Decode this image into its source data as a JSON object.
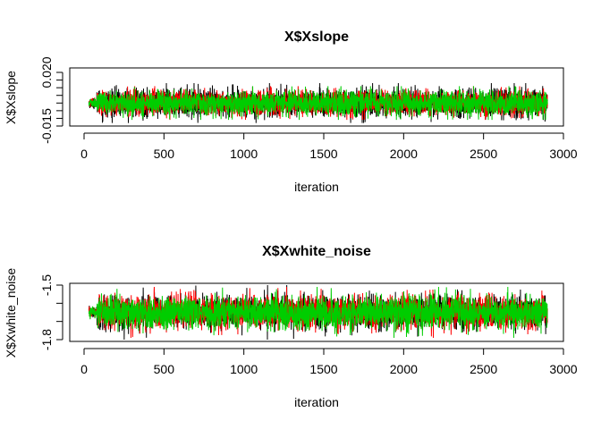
{
  "chart_data": [
    {
      "type": "line",
      "title": "X$Xslope",
      "xlabel": "iteration",
      "ylabel": "X$Xslope",
      "xlim": [
        0,
        3000
      ],
      "ylim": [
        -0.015,
        0.02
      ],
      "x_ticks": [
        "0",
        "500",
        "1000",
        "1500",
        "2000",
        "2500",
        "3000"
      ],
      "y_ticks": [
        "-0.015",
        "0.020"
      ],
      "y_tick_values": [
        -0.015,
        0.02
      ],
      "y_minor_ticks": [
        -0.01,
        -0.005,
        0.0,
        0.005,
        0.01,
        0.015
      ],
      "x_range": [
        30,
        2900
      ],
      "series": [
        {
          "color": "#000000",
          "center": 0.0,
          "spread": 0.0045,
          "max_dev": 0.013
        },
        {
          "color": "#FF0000",
          "center": 0.0,
          "spread": 0.004,
          "max_dev": 0.011
        },
        {
          "color": "#00CD00",
          "center": 0.0,
          "spread": 0.004,
          "max_dev": 0.011
        }
      ]
    },
    {
      "type": "line",
      "title": "X$Xwhite_noise",
      "xlabel": "iteration",
      "ylabel": "X$Xwhite_noise",
      "xlim": [
        0,
        3000
      ],
      "ylim": [
        -1.8,
        -1.5
      ],
      "x_ticks": [
        "0",
        "500",
        "1000",
        "1500",
        "2000",
        "2500",
        "3000"
      ],
      "y_ticks": [
        "-1.5",
        "-1.8"
      ],
      "y_tick_values": [
        -1.5,
        -1.8
      ],
      "y_minor_ticks": [
        -1.7,
        -1.6
      ],
      "x_range": [
        30,
        2900
      ],
      "series": [
        {
          "color": "#000000",
          "center": -1.65,
          "spread": 0.045,
          "max_dev": 0.15
        },
        {
          "color": "#FF0000",
          "center": -1.65,
          "spread": 0.045,
          "max_dev": 0.14
        },
        {
          "color": "#00CD00",
          "center": -1.65,
          "spread": 0.045,
          "max_dev": 0.14
        }
      ]
    }
  ]
}
